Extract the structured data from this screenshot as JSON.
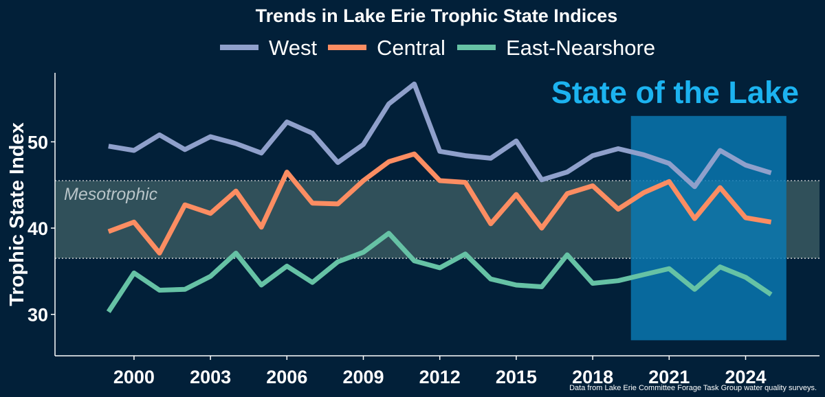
{
  "chart_data": {
    "type": "line",
    "title": "Trends in Lake Erie Trophic State Indices",
    "ylabel": "Trophic State Index",
    "xlabel": "",
    "x": [
      1999,
      2000,
      2001,
      2002,
      2003,
      2004,
      2005,
      2006,
      2007,
      2008,
      2009,
      2010,
      2011,
      2012,
      2013,
      2014,
      2015,
      2016,
      2017,
      2018,
      2019,
      2020,
      2021,
      2022,
      2023,
      2024,
      2025
    ],
    "xlim": [
      1996.9,
      2026.9
    ],
    "ylim": [
      25.2,
      58.0
    ],
    "xticks": [
      2000,
      2003,
      2006,
      2009,
      2012,
      2015,
      2018,
      2021,
      2024
    ],
    "xtick_labels": [
      "2000",
      "2003",
      "2006",
      "2009",
      "2012",
      "2015",
      "2018",
      "2021",
      "2024"
    ],
    "yticks": [
      30,
      40,
      50
    ],
    "ytick_labels": [
      "30",
      "40",
      "50"
    ],
    "series": [
      {
        "name": "West",
        "color": "#8fa0cb",
        "values": [
          49.5,
          49.0,
          50.8,
          49.1,
          50.6,
          49.8,
          48.7,
          52.3,
          51.0,
          47.6,
          49.7,
          54.4,
          56.7,
          48.9,
          48.4,
          48.1,
          50.1,
          45.6,
          46.5,
          48.4,
          49.2,
          48.5,
          47.5,
          44.8,
          49.0,
          47.3,
          46.4
        ]
      },
      {
        "name": "Central",
        "color": "#fc8d62",
        "values": [
          39.6,
          40.7,
          37.1,
          42.7,
          41.7,
          44.3,
          40.1,
          46.5,
          42.9,
          42.8,
          45.5,
          47.7,
          48.6,
          45.5,
          45.3,
          40.5,
          43.9,
          40.0,
          44.0,
          44.9,
          42.2,
          44.1,
          45.4,
          41.1,
          44.7,
          41.2,
          40.7
        ]
      },
      {
        "name": "East-Nearshore",
        "color": "#66c2a5",
        "values": [
          30.3,
          34.8,
          32.8,
          32.9,
          34.4,
          37.1,
          33.4,
          35.6,
          33.7,
          36.1,
          37.2,
          39.4,
          36.2,
          35.4,
          37.0,
          34.1,
          33.4,
          33.2,
          36.9,
          33.6,
          33.9,
          34.6,
          35.3,
          32.9,
          35.5,
          34.3,
          32.3
        ]
      }
    ],
    "bands": [
      {
        "label": "Mesotrophic",
        "y_low": 36.5,
        "y_high": 45.5,
        "color": "#b5ddb9",
        "opacity": 0.26
      }
    ],
    "highlight": {
      "label": "State of the Lake",
      "x_start": 2019.5,
      "x_end": 2025.6,
      "y_low": 27.0,
      "y_high": 53.0,
      "color": "#0a7ab3",
      "text_color": "#1cb3f0"
    },
    "legend": {
      "placement": "top-center"
    },
    "grid": false,
    "source_note": "Data from Lake Erie Committee Forage Task Group water quality surveys."
  }
}
